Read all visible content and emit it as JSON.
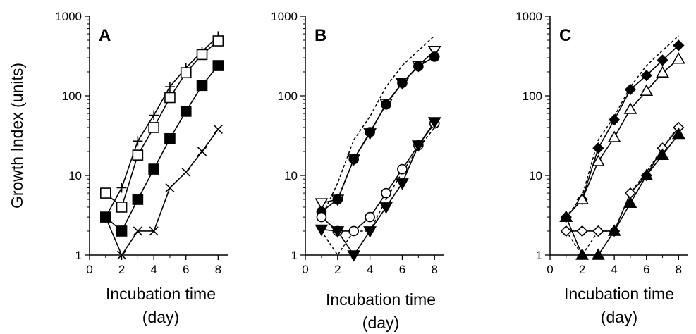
{
  "chart_data": [
    {
      "type": "line",
      "panel_label": "A",
      "ylabel": "Growth Index (units)",
      "xlabel": [
        "Incubation time",
        "(day)"
      ],
      "x_ticks": [
        "0",
        "2",
        "4",
        "6",
        "8"
      ],
      "y_ticks": [
        "1",
        "10",
        "100",
        "1000"
      ],
      "xlim": [
        0,
        8.6
      ],
      "ylim": [
        1,
        1000
      ],
      "yscale": "log",
      "grid": false,
      "series": [
        {
          "marker": "plus",
          "line": "solid",
          "x": [
            1,
            2,
            3,
            4,
            5,
            6,
            7,
            8
          ],
          "values": [
            3,
            7,
            27,
            57,
            130,
            225,
            360,
            560
          ]
        },
        {
          "marker": "square-open",
          "line": "solid",
          "x": [
            1,
            2,
            3,
            4,
            5,
            6,
            7,
            8
          ],
          "values": [
            6,
            4,
            18,
            40,
            95,
            195,
            330,
            490
          ]
        },
        {
          "marker": "square-filled",
          "line": "solid",
          "x": [
            1,
            2,
            3,
            4,
            5,
            6,
            7,
            8
          ],
          "values": [
            3,
            2,
            5,
            12,
            29,
            64,
            135,
            240
          ]
        },
        {
          "marker": "x",
          "line": "solid",
          "x": [
            1,
            2,
            3,
            4,
            5,
            6,
            7,
            8
          ],
          "values": [
            3,
            1,
            2,
            2,
            7,
            11,
            20,
            38
          ]
        }
      ]
    },
    {
      "type": "line",
      "panel_label": "B",
      "ylabel": "",
      "xlabel": [
        "Incubation time",
        "(day)"
      ],
      "x_ticks": [
        "0",
        "2",
        "4",
        "6",
        "8"
      ],
      "y_ticks": [
        "1",
        "10",
        "100",
        "1000"
      ],
      "xlim": [
        0,
        8.6
      ],
      "ylim": [
        1,
        1000
      ],
      "yscale": "log",
      "grid": false,
      "series": [
        {
          "marker": "none",
          "line": "dashed",
          "x": [
            1,
            2,
            3,
            4,
            5,
            6,
            7,
            8
          ],
          "values": [
            3,
            8,
            28,
            55,
            130,
            240,
            370,
            570
          ]
        },
        {
          "marker": "triangle-down-open",
          "line": "solid",
          "x": [
            1,
            2,
            3,
            4,
            5,
            6,
            7,
            8
          ],
          "values": [
            4.5,
            5,
            16,
            34,
            80,
            145,
            240,
            370
          ]
        },
        {
          "marker": "circle-filled",
          "line": "solid",
          "x": [
            1,
            2,
            3,
            4,
            5,
            6,
            7,
            8
          ],
          "values": [
            3.5,
            5,
            16,
            35,
            78,
            145,
            235,
            310
          ]
        },
        {
          "marker": "none",
          "line": "dashed",
          "x": [
            1,
            2,
            3,
            4,
            5,
            6,
            7,
            8
          ],
          "values": [
            2,
            1,
            2,
            2,
            5,
            11,
            22,
            40
          ]
        },
        {
          "marker": "circle-open",
          "line": "solid",
          "x": [
            1,
            2,
            3,
            4,
            5,
            6,
            7,
            8
          ],
          "values": [
            3,
            2,
            2,
            3,
            6,
            12,
            24,
            45
          ]
        },
        {
          "marker": "triangle-down-filled",
          "line": "solid",
          "x": [
            1,
            2,
            3,
            4,
            5,
            6,
            7,
            8
          ],
          "values": [
            2.1,
            2,
            1,
            2,
            4,
            8,
            24,
            47
          ]
        }
      ]
    },
    {
      "type": "line",
      "panel_label": "C",
      "ylabel": "",
      "xlabel": [
        "Incubation time",
        "(day)"
      ],
      "x_ticks": [
        "0",
        "2",
        "4",
        "6",
        "8"
      ],
      "y_ticks": [
        "1",
        "10",
        "100",
        "1000"
      ],
      "xlim": [
        0,
        8.6
      ],
      "ylim": [
        1,
        1000
      ],
      "yscale": "log",
      "grid": false,
      "series": [
        {
          "marker": "none",
          "line": "dashed",
          "x": [
            1,
            2,
            3,
            4,
            5,
            6,
            7,
            8
          ],
          "values": [
            3,
            5.5,
            28,
            55,
            130,
            240,
            370,
            570
          ]
        },
        {
          "marker": "diamond-filled",
          "line": "solid",
          "x": [
            1,
            2,
            3,
            4,
            5,
            6,
            7,
            8
          ],
          "values": [
            3,
            5,
            22,
            50,
            120,
            180,
            280,
            430
          ]
        },
        {
          "marker": "triangle-up-open",
          "line": "solid",
          "x": [
            1,
            2,
            3,
            4,
            5,
            6,
            7,
            8
          ],
          "values": [
            3,
            5,
            15,
            30,
            68,
            115,
            195,
            290
          ]
        },
        {
          "marker": "none",
          "line": "dashed",
          "x": [
            1,
            2,
            3,
            4,
            5,
            6,
            7,
            8
          ],
          "values": [
            2,
            1,
            2,
            2,
            6,
            11,
            22,
            42
          ]
        },
        {
          "marker": "diamond-open",
          "line": "solid",
          "x": [
            1,
            2,
            3,
            4,
            5,
            6,
            7,
            8
          ],
          "values": [
            2,
            2,
            2,
            2,
            6,
            10,
            22,
            40
          ]
        },
        {
          "marker": "triangle-up-filled",
          "line": "solid",
          "x": [
            1,
            2,
            3,
            4,
            5,
            6,
            7,
            8
          ],
          "values": [
            3,
            1,
            1,
            2,
            4.5,
            10,
            18,
            33
          ]
        }
      ]
    }
  ]
}
